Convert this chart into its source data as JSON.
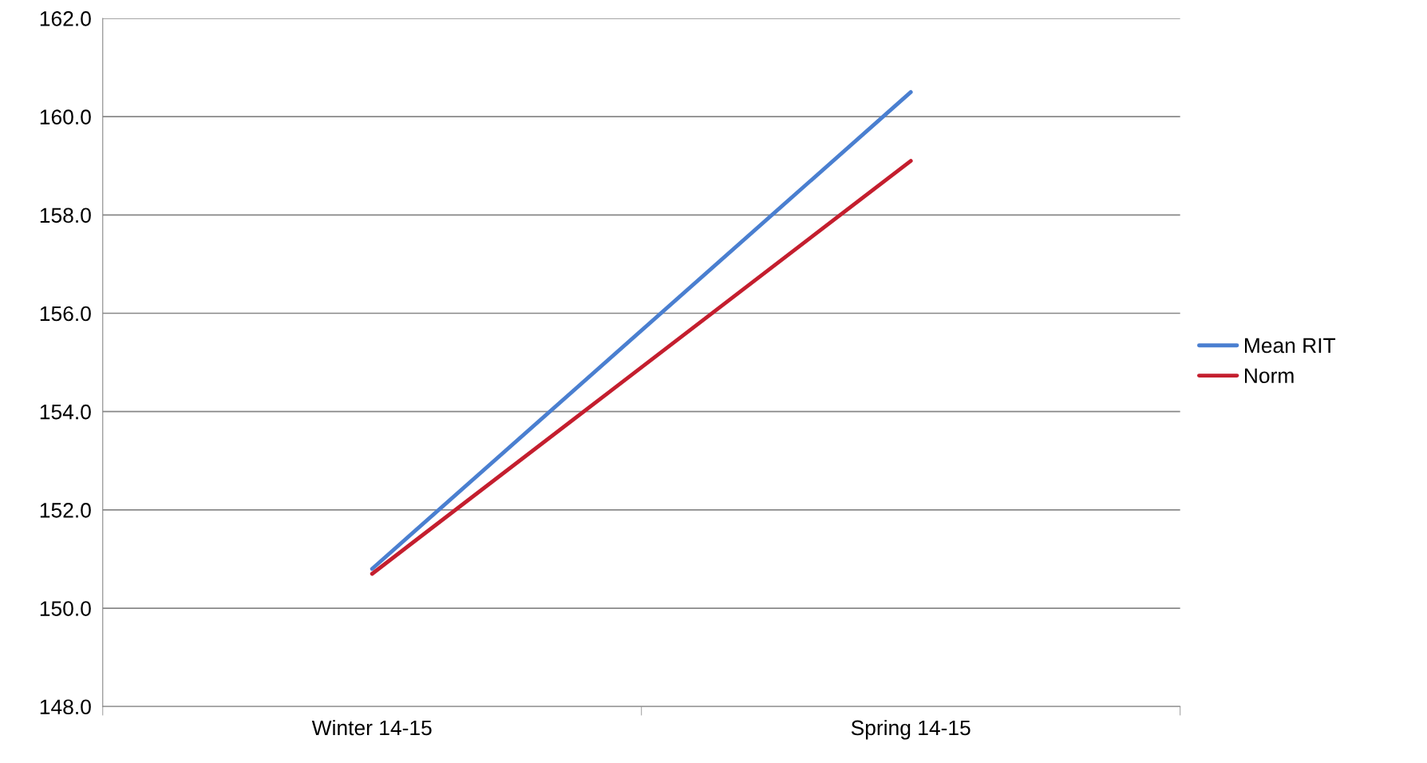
{
  "chart_data": {
    "type": "line",
    "categories": [
      "Winter 14-15",
      "Spring 14-15"
    ],
    "series": [
      {
        "name": "Mean RIT",
        "color": "#4a7fd0",
        "values": [
          150.8,
          160.5
        ]
      },
      {
        "name": "Norm",
        "color": "#c41e2e",
        "values": [
          150.7,
          159.1
        ]
      }
    ],
    "ylim": [
      148,
      162
    ],
    "yticks": [
      {
        "value": 148,
        "label": "148.0"
      },
      {
        "value": 150,
        "label": "150.0"
      },
      {
        "value": 152,
        "label": "152.0"
      },
      {
        "value": 154,
        "label": "154.0"
      },
      {
        "value": 156,
        "label": "156.0"
      },
      {
        "value": 158,
        "label": "158.0"
      },
      {
        "value": 160,
        "label": "160.0"
      },
      {
        "value": 162,
        "label": "162.0"
      }
    ],
    "grid": "y",
    "legend": "right",
    "marker": "none",
    "line_style": "solid"
  }
}
